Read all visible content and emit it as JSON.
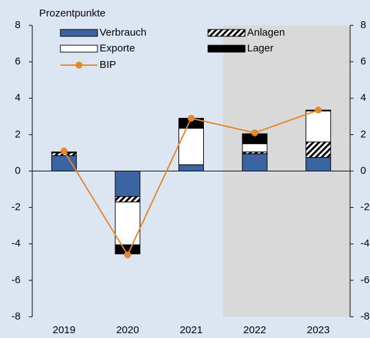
{
  "chart_data": {
    "type": "bar",
    "y_label": "Prozentpunkte",
    "categories": [
      "2019",
      "2020",
      "2021",
      "2022",
      "2023"
    ],
    "series": [
      {
        "name": "Verbrauch",
        "color": "#3a65a0",
        "values": [
          0.85,
          -1.4,
          0.35,
          0.95,
          0.75
        ]
      },
      {
        "name": "Anlagen",
        "color": "#000000",
        "hatch": true,
        "values": [
          0.15,
          -0.3,
          0,
          0.1,
          0.85
        ]
      },
      {
        "name": "Exporte",
        "color": "#ffffff",
        "values": [
          0,
          -2.35,
          2.0,
          0.45,
          1.7
        ]
      },
      {
        "name": "Lager",
        "color": "#000000",
        "values": [
          0.05,
          -0.5,
          0.55,
          0.55,
          0.05
        ]
      },
      {
        "name": "BIP",
        "type": "line",
        "color": "#e3872d",
        "values": [
          1.1,
          -4.6,
          2.9,
          2.1,
          3.35
        ]
      }
    ],
    "shaded_from": "2022",
    "ylim": [
      -8,
      8
    ],
    "yticks": [
      -8,
      -6,
      -4,
      -2,
      0,
      2,
      4,
      6,
      8
    ],
    "y2lim": [
      -8,
      8
    ],
    "y2ticks": [
      -8,
      -6,
      -4,
      -2,
      0,
      2,
      4,
      6,
      8
    ]
  }
}
